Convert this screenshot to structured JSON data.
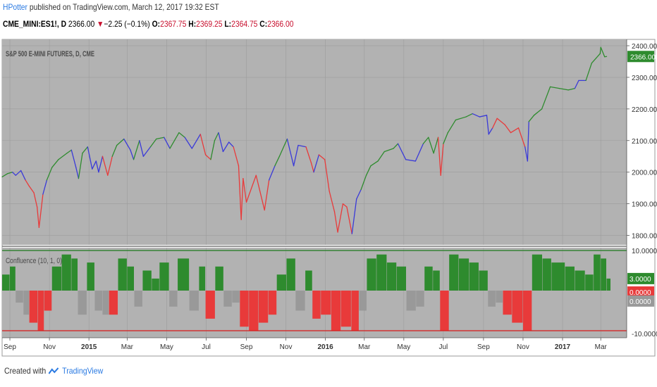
{
  "header": {
    "author": "HPotter",
    "published_text": " published on TradingView.com, March 12, 2017 19:32 EST"
  },
  "quote": {
    "symbol": "CME_MINI:ES1!, D",
    "last": "2366.00",
    "arrow": "▼",
    "change": "−2.25 (−0.1%)",
    "o_label": "O:",
    "o_value": "2367.75",
    "h_label": "H:",
    "h_value": "2369.25",
    "l_label": "L:",
    "l_value": "2364.75",
    "c_label": "C:",
    "c_value": "2366.00"
  },
  "colors": {
    "background": "#b2b2b2",
    "up": "#2e8b2e",
    "down": "#e83a3a",
    "neutral": "#3a3ad8",
    "hist_up": "#2e8b2e",
    "hist_down": "#e83a3a",
    "hist_neutral": "#999999",
    "upper_line": "#1d7a1d",
    "lower_line": "#d81b1b"
  },
  "chart_data": [
    {
      "type": "line",
      "title": "S&P 500 E-MINI FUTURES, D, CME",
      "price_label": "2366.00",
      "yticks": [
        "2400.00",
        "2300.00",
        "2200.00",
        "2100.00",
        "2000.00",
        "1900.00",
        "1800.00"
      ],
      "ylim": [
        1770,
        2420
      ],
      "xlim": [
        "2014-08-20",
        "2017-04-10"
      ],
      "x_tick_labels": [
        "Sep",
        "Nov",
        "2015",
        "Mar",
        "May",
        "Jul",
        "Sep",
        "Nov",
        "2016",
        "Mar",
        "May",
        "Jul",
        "Sep",
        "Nov",
        "2017",
        "Mar"
      ],
      "x_tick_dates": [
        "2014-09-01",
        "2014-11-01",
        "2015-01-01",
        "2015-03-01",
        "2015-05-01",
        "2015-07-01",
        "2015-09-01",
        "2015-11-01",
        "2016-01-01",
        "2016-03-01",
        "2016-05-01",
        "2016-07-01",
        "2016-09-01",
        "2016-11-01",
        "2017-01-01",
        "2017-03-01"
      ],
      "series": [
        {
          "values": [
            [
              "2014-08-20",
              1985,
              "up"
            ],
            [
              "2014-08-28",
              1995,
              "up"
            ],
            [
              "2014-09-05",
              2000,
              "up"
            ],
            [
              "2014-09-10",
              1990,
              "neutral"
            ],
            [
              "2014-09-18",
              2005,
              "neutral"
            ],
            [
              "2014-09-25",
              1975,
              "neutral"
            ],
            [
              "2014-10-01",
              1955,
              "down"
            ],
            [
              "2014-10-08",
              1935,
              "down"
            ],
            [
              "2014-10-13",
              1890,
              "down"
            ],
            [
              "2014-10-16",
              1825,
              "down"
            ],
            [
              "2014-10-22",
              1930,
              "down"
            ],
            [
              "2014-10-28",
              1975,
              "neutral"
            ],
            [
              "2014-11-05",
              2015,
              "up"
            ],
            [
              "2014-11-15",
              2040,
              "up"
            ],
            [
              "2014-11-28",
              2060,
              "up"
            ],
            [
              "2014-12-05",
              2070,
              "up"
            ],
            [
              "2014-12-12",
              2015,
              "neutral"
            ],
            [
              "2014-12-16",
              1980,
              "neutral"
            ],
            [
              "2014-12-22",
              2060,
              "up"
            ],
            [
              "2014-12-30",
              2080,
              "up"
            ],
            [
              "2015-01-06",
              2010,
              "neutral"
            ],
            [
              "2015-01-12",
              2035,
              "neutral"
            ],
            [
              "2015-01-16",
              2000,
              "neutral"
            ],
            [
              "2015-01-22",
              2050,
              "neutral"
            ],
            [
              "2015-01-30",
              1990,
              "down"
            ],
            [
              "2015-02-06",
              2050,
              "down"
            ],
            [
              "2015-02-13",
              2085,
              "up"
            ],
            [
              "2015-02-24",
              2105,
              "up"
            ],
            [
              "2015-03-06",
              2070,
              "neutral"
            ],
            [
              "2015-03-11",
              2040,
              "neutral"
            ],
            [
              "2015-03-20",
              2100,
              "up"
            ],
            [
              "2015-03-26",
              2050,
              "neutral"
            ],
            [
              "2015-04-06",
              2080,
              "neutral"
            ],
            [
              "2015-04-15",
              2105,
              "up"
            ],
            [
              "2015-04-27",
              2110,
              "up"
            ],
            [
              "2015-05-06",
              2075,
              "neutral"
            ],
            [
              "2015-05-20",
              2125,
              "up"
            ],
            [
              "2015-05-29",
              2110,
              "up"
            ],
            [
              "2015-06-09",
              2075,
              "neutral"
            ],
            [
              "2015-06-22",
              2120,
              "neutral"
            ],
            [
              "2015-06-30",
              2055,
              "down"
            ],
            [
              "2015-07-08",
              2040,
              "down"
            ],
            [
              "2015-07-14",
              2100,
              "up"
            ],
            [
              "2015-07-20",
              2125,
              "up"
            ],
            [
              "2015-07-27",
              2065,
              "neutral"
            ],
            [
              "2015-08-05",
              2095,
              "neutral"
            ],
            [
              "2015-08-12",
              2080,
              "neutral"
            ],
            [
              "2015-08-20",
              2020,
              "down"
            ],
            [
              "2015-08-24",
              1850,
              "down"
            ],
            [
              "2015-08-27",
              1980,
              "down"
            ],
            [
              "2015-09-01",
              1905,
              "down"
            ],
            [
              "2015-09-16",
              1990,
              "down"
            ],
            [
              "2015-09-29",
              1880,
              "down"
            ],
            [
              "2015-10-06",
              1975,
              "down"
            ],
            [
              "2015-10-15",
              2020,
              "neutral"
            ],
            [
              "2015-10-22",
              2050,
              "up"
            ],
            [
              "2015-11-03",
              2105,
              "up"
            ],
            [
              "2015-11-13",
              2020,
              "neutral"
            ],
            [
              "2015-11-20",
              2085,
              "neutral"
            ],
            [
              "2015-12-02",
              2080,
              "neutral"
            ],
            [
              "2015-12-10",
              2030,
              "down"
            ],
            [
              "2015-12-14",
              2000,
              "down"
            ],
            [
              "2015-12-22",
              2055,
              "neutral"
            ],
            [
              "2015-12-31",
              2040,
              "down"
            ],
            [
              "2016-01-07",
              1940,
              "down"
            ],
            [
              "2016-01-15",
              1875,
              "down"
            ],
            [
              "2016-01-20",
              1810,
              "down"
            ],
            [
              "2016-01-28",
              1900,
              "down"
            ],
            [
              "2016-02-03",
              1890,
              "down"
            ],
            [
              "2016-02-11",
              1805,
              "down"
            ],
            [
              "2016-02-18",
              1915,
              "neutral"
            ],
            [
              "2016-02-25",
              1945,
              "neutral"
            ],
            [
              "2016-03-04",
              1990,
              "up"
            ],
            [
              "2016-03-11",
              2020,
              "up"
            ],
            [
              "2016-03-22",
              2035,
              "up"
            ],
            [
              "2016-04-01",
              2065,
              "up"
            ],
            [
              "2016-04-15",
              2075,
              "up"
            ],
            [
              "2016-04-22",
              2090,
              "up"
            ],
            [
              "2016-05-04",
              2040,
              "neutral"
            ],
            [
              "2016-05-19",
              2035,
              "neutral"
            ],
            [
              "2016-05-31",
              2090,
              "neutral"
            ],
            [
              "2016-06-08",
              2110,
              "up"
            ],
            [
              "2016-06-16",
              2060,
              "up"
            ],
            [
              "2016-06-23",
              2110,
              "up"
            ],
            [
              "2016-06-27",
              1990,
              "down"
            ],
            [
              "2016-07-01",
              2090,
              "down"
            ],
            [
              "2016-07-08",
              2125,
              "up"
            ],
            [
              "2016-07-20",
              2165,
              "up"
            ],
            [
              "2016-08-05",
              2175,
              "up"
            ],
            [
              "2016-08-15",
              2185,
              "up"
            ],
            [
              "2016-08-26",
              2175,
              "neutral"
            ],
            [
              "2016-09-06",
              2180,
              "neutral"
            ],
            [
              "2016-09-09",
              2120,
              "neutral"
            ],
            [
              "2016-09-15",
              2140,
              "neutral"
            ],
            [
              "2016-09-22",
              2170,
              "down"
            ],
            [
              "2016-10-04",
              2150,
              "down"
            ],
            [
              "2016-10-13",
              2125,
              "down"
            ],
            [
              "2016-10-25",
              2140,
              "down"
            ],
            [
              "2016-11-04",
              2080,
              "down"
            ],
            [
              "2016-11-08",
              2035,
              "neutral"
            ],
            [
              "2016-11-10",
              2160,
              "neutral"
            ],
            [
              "2016-11-18",
              2180,
              "up"
            ],
            [
              "2016-11-30",
              2200,
              "up"
            ],
            [
              "2016-12-13",
              2270,
              "up"
            ],
            [
              "2016-12-27",
              2265,
              "up"
            ],
            [
              "2017-01-10",
              2260,
              "up"
            ],
            [
              "2017-01-20",
              2265,
              "up"
            ],
            [
              "2017-01-26",
              2290,
              "neutral"
            ],
            [
              "2017-02-06",
              2290,
              "neutral"
            ],
            [
              "2017-02-15",
              2345,
              "up"
            ],
            [
              "2017-02-28",
              2375,
              "up"
            ],
            [
              "2017-03-01",
              2395,
              "up"
            ],
            [
              "2017-03-07",
              2365,
              "up"
            ],
            [
              "2017-03-10",
              2366,
              "up"
            ]
          ]
        }
      ]
    },
    {
      "type": "bar",
      "title": "Confluence (10, 1, 0)",
      "yticks": [
        "10.0000",
        "-10.0000"
      ],
      "value_labels": [
        "3.0000",
        "0.0000",
        "0.0000"
      ],
      "ylim": [
        -10,
        10
      ],
      "upper_level": 10,
      "lower_level": -10,
      "bars": [
        [
          "2014-08-20",
          4,
          "up"
        ],
        [
          "2014-09-01",
          6,
          "up"
        ],
        [
          "2014-09-10",
          -3,
          "neutral"
        ],
        [
          "2014-09-22",
          -6,
          "neutral"
        ],
        [
          "2014-10-01",
          -8,
          "down"
        ],
        [
          "2014-10-14",
          -10,
          "down"
        ],
        [
          "2014-10-24",
          -5,
          "down"
        ],
        [
          "2014-11-05",
          6,
          "up"
        ],
        [
          "2014-11-20",
          9,
          "up"
        ],
        [
          "2014-12-05",
          8,
          "up"
        ],
        [
          "2014-12-15",
          -6,
          "neutral"
        ],
        [
          "2014-12-29",
          7,
          "up"
        ],
        [
          "2015-01-10",
          -5,
          "neutral"
        ],
        [
          "2015-01-22",
          -6,
          "neutral"
        ],
        [
          "2015-02-01",
          -6,
          "down"
        ],
        [
          "2015-02-15",
          8,
          "up"
        ],
        [
          "2015-03-01",
          6,
          "up"
        ],
        [
          "2015-03-12",
          -4,
          "neutral"
        ],
        [
          "2015-03-25",
          5,
          "up"
        ],
        [
          "2015-04-08",
          3,
          "up"
        ],
        [
          "2015-04-20",
          7,
          "up"
        ],
        [
          "2015-05-05",
          -4,
          "neutral"
        ],
        [
          "2015-05-18",
          8,
          "up"
        ],
        [
          "2015-06-05",
          -5,
          "neutral"
        ],
        [
          "2015-06-20",
          6,
          "up"
        ],
        [
          "2015-06-30",
          -7,
          "down"
        ],
        [
          "2015-07-15",
          6,
          "up"
        ],
        [
          "2015-07-28",
          -4,
          "neutral"
        ],
        [
          "2015-08-10",
          -3,
          "neutral"
        ],
        [
          "2015-08-22",
          -9,
          "down"
        ],
        [
          "2015-09-05",
          -10,
          "down"
        ],
        [
          "2015-09-20",
          -8,
          "down"
        ],
        [
          "2015-10-05",
          -6,
          "down"
        ],
        [
          "2015-10-18",
          4,
          "up"
        ],
        [
          "2015-11-02",
          8,
          "up"
        ],
        [
          "2015-11-16",
          -5,
          "neutral"
        ],
        [
          "2015-12-01",
          5,
          "up"
        ],
        [
          "2015-12-12",
          -7,
          "down"
        ],
        [
          "2015-12-25",
          -6,
          "down"
        ],
        [
          "2016-01-10",
          -10,
          "down"
        ],
        [
          "2016-01-25",
          -9,
          "down"
        ],
        [
          "2016-02-10",
          -10,
          "down"
        ],
        [
          "2016-02-22",
          -5,
          "neutral"
        ],
        [
          "2016-03-05",
          8,
          "up"
        ],
        [
          "2016-03-20",
          9,
          "up"
        ],
        [
          "2016-04-05",
          7,
          "up"
        ],
        [
          "2016-04-20",
          6,
          "up"
        ],
        [
          "2016-05-05",
          -5,
          "neutral"
        ],
        [
          "2016-05-20",
          -4,
          "neutral"
        ],
        [
          "2016-06-02",
          6,
          "up"
        ],
        [
          "2016-06-15",
          5,
          "up"
        ],
        [
          "2016-06-26",
          -10,
          "down"
        ],
        [
          "2016-07-10",
          9,
          "up"
        ],
        [
          "2016-07-25",
          8,
          "up"
        ],
        [
          "2016-08-10",
          7,
          "up"
        ],
        [
          "2016-08-25",
          5,
          "up"
        ],
        [
          "2016-09-08",
          -4,
          "neutral"
        ],
        [
          "2016-09-20",
          -3,
          "neutral"
        ],
        [
          "2016-10-01",
          -6,
          "down"
        ],
        [
          "2016-10-15",
          -8,
          "down"
        ],
        [
          "2016-11-01",
          -10,
          "down"
        ],
        [
          "2016-11-15",
          9,
          "up"
        ],
        [
          "2016-12-01",
          8,
          "up"
        ],
        [
          "2016-12-15",
          7,
          "up"
        ],
        [
          "2017-01-05",
          6,
          "up"
        ],
        [
          "2017-01-20",
          5,
          "up"
        ],
        [
          "2017-02-05",
          4,
          "up"
        ],
        [
          "2017-02-18",
          9,
          "up"
        ],
        [
          "2017-03-01",
          8,
          "up"
        ],
        [
          "2017-03-10",
          3,
          "up"
        ]
      ]
    }
  ],
  "footer": {
    "created_with": "Created with",
    "brand": "TradingView"
  }
}
